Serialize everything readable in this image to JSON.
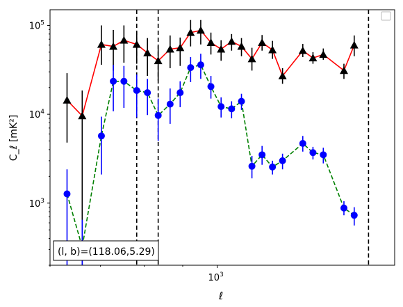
{
  "chart_data": {
    "type": "line",
    "xlabel": "ℓ",
    "ylabel": "C_ℓ [mK²]",
    "xscale": "log",
    "yscale": "log",
    "xlim": [
      600,
      1720
    ],
    "ylim": [
      200,
      150000
    ],
    "x_ticks": [
      {
        "value": 1000,
        "label": "10",
        "exp": "3"
      }
    ],
    "y_ticks": [
      {
        "value": 1000,
        "label": "10",
        "exp": "3"
      },
      {
        "value": 10000,
        "label": "10",
        "exp": "4"
      },
      {
        "value": 100000,
        "label": "10",
        "exp": "5"
      }
    ],
    "annotation": "(l, b)=(118.06,5.29)",
    "legend": "top-right (empty)",
    "vlines": [
      782,
      835,
      1588
    ],
    "series": [
      {
        "marker": "triangle",
        "color": "#000000",
        "line_color": "#ff0000",
        "linestyle": "solid",
        "points": [
          {
            "x": 632,
            "y": 14400,
            "lo": 4800,
            "hi": 29000
          },
          {
            "x": 662,
            "y": 9600,
            "lo": 200,
            "hi": 18500
          },
          {
            "x": 702,
            "y": 61000,
            "lo": 36000,
            "hi": 100000
          },
          {
            "x": 728,
            "y": 58000,
            "lo": 31000,
            "hi": 89000
          },
          {
            "x": 752,
            "y": 68000,
            "lo": 38000,
            "hi": 100000
          },
          {
            "x": 782,
            "y": 61000,
            "lo": 37000,
            "hi": 85000
          },
          {
            "x": 808,
            "y": 49000,
            "lo": 27000,
            "hi": 72000
          },
          {
            "x": 835,
            "y": 40000,
            "lo": 24000,
            "hi": 59000
          },
          {
            "x": 866,
            "y": 54000,
            "lo": 33000,
            "hi": 77000
          },
          {
            "x": 893,
            "y": 56000,
            "lo": 35000,
            "hi": 73000
          },
          {
            "x": 922,
            "y": 83000,
            "lo": 58000,
            "hi": 115000
          },
          {
            "x": 951,
            "y": 88000,
            "lo": 61000,
            "hi": 115000
          },
          {
            "x": 981,
            "y": 64000,
            "lo": 47000,
            "hi": 83000
          },
          {
            "x": 1012,
            "y": 54000,
            "lo": 40000,
            "hi": 68000
          },
          {
            "x": 1045,
            "y": 66000,
            "lo": 52000,
            "hi": 80000
          },
          {
            "x": 1077,
            "y": 58000,
            "lo": 45000,
            "hi": 72000
          },
          {
            "x": 1112,
            "y": 42000,
            "lo": 31000,
            "hi": 56000
          },
          {
            "x": 1147,
            "y": 64000,
            "lo": 52000,
            "hi": 78000
          },
          {
            "x": 1184,
            "y": 53000,
            "lo": 42000,
            "hi": 67000
          },
          {
            "x": 1221,
            "y": 27000,
            "lo": 22000,
            "hi": 33000
          },
          {
            "x": 1299,
            "y": 52000,
            "lo": 44000,
            "hi": 62000
          },
          {
            "x": 1340,
            "y": 43000,
            "lo": 37000,
            "hi": 50000
          },
          {
            "x": 1383,
            "y": 47000,
            "lo": 41000,
            "hi": 55000
          },
          {
            "x": 1473,
            "y": 31000,
            "lo": 25000,
            "hi": 37000
          },
          {
            "x": 1520,
            "y": 60000,
            "lo": 45000,
            "hi": 77000
          }
        ]
      },
      {
        "marker": "circle",
        "color": "#0000ff",
        "line_color": "#008000",
        "linestyle": "dashed",
        "points": [
          {
            "x": 632,
            "y": 1270,
            "lo": 200,
            "hi": 2400
          },
          {
            "x": 662,
            "y": 320,
            "lo": 200,
            "hi": 650
          },
          {
            "x": 702,
            "y": 5700,
            "lo": 2100,
            "hi": 9400
          },
          {
            "x": 728,
            "y": 23500,
            "lo": 10800,
            "hi": 36000
          },
          {
            "x": 752,
            "y": 23500,
            "lo": 11800,
            "hi": 35000
          },
          {
            "x": 782,
            "y": 18500,
            "lo": 9200,
            "hi": 28000
          },
          {
            "x": 808,
            "y": 17500,
            "lo": 9800,
            "hi": 25000
          },
          {
            "x": 835,
            "y": 9700,
            "lo": 5000,
            "hi": 15000
          },
          {
            "x": 866,
            "y": 13000,
            "lo": 7800,
            "hi": 19500
          },
          {
            "x": 893,
            "y": 17500,
            "lo": 12000,
            "hi": 23500
          },
          {
            "x": 922,
            "y": 33500,
            "lo": 23000,
            "hi": 44000
          },
          {
            "x": 951,
            "y": 36000,
            "lo": 25000,
            "hi": 48000
          },
          {
            "x": 981,
            "y": 20500,
            "lo": 15000,
            "hi": 27000
          },
          {
            "x": 1012,
            "y": 12200,
            "lo": 9200,
            "hi": 15500
          },
          {
            "x": 1045,
            "y": 11500,
            "lo": 9000,
            "hi": 14000
          },
          {
            "x": 1077,
            "y": 14000,
            "lo": 11200,
            "hi": 17000
          },
          {
            "x": 1112,
            "y": 2600,
            "lo": 1900,
            "hi": 3400
          },
          {
            "x": 1147,
            "y": 3500,
            "lo": 2700,
            "hi": 4400
          },
          {
            "x": 1184,
            "y": 2550,
            "lo": 2100,
            "hi": 3000
          },
          {
            "x": 1221,
            "y": 3000,
            "lo": 2400,
            "hi": 3600
          },
          {
            "x": 1299,
            "y": 4700,
            "lo": 3800,
            "hi": 5700
          },
          {
            "x": 1340,
            "y": 3700,
            "lo": 3100,
            "hi": 4300
          },
          {
            "x": 1383,
            "y": 3500,
            "lo": 2800,
            "hi": 4200
          },
          {
            "x": 1473,
            "y": 880,
            "lo": 730,
            "hi": 1050
          },
          {
            "x": 1520,
            "y": 730,
            "lo": 560,
            "hi": 900
          }
        ]
      }
    ]
  }
}
